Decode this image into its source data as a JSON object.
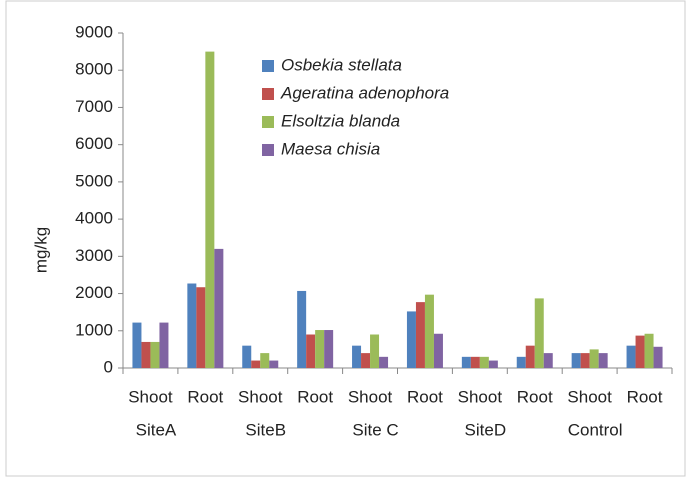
{
  "chart_data": {
    "type": "bar",
    "ylabel": "mg/kg",
    "categories": [
      "Shoot",
      "Root",
      "Shoot",
      "Root",
      "Shoot",
      "Root",
      "Shoot",
      "Root",
      "Shoot",
      "Root"
    ],
    "groups": [
      "SiteA",
      "SiteB",
      "Site C",
      "SiteD",
      "Control"
    ],
    "series": [
      {
        "name": "Osbekia stellata",
        "color": "#4f81bd",
        "values": [
          1220,
          2270,
          600,
          2070,
          600,
          1520,
          300,
          300,
          400,
          600
        ]
      },
      {
        "name": "Ageratina adenophora",
        "color": "#c0504d",
        "values": [
          700,
          2170,
          200,
          900,
          400,
          1770,
          300,
          600,
          400,
          870
        ]
      },
      {
        "name": "Elsoltzia blanda",
        "color": "#9bbb59",
        "values": [
          700,
          8500,
          400,
          1020,
          900,
          1970,
          300,
          1870,
          500,
          920
        ]
      },
      {
        "name": "Maesa chisia",
        "color": "#8064a2",
        "values": [
          1220,
          3200,
          200,
          1020,
          300,
          920,
          200,
          400,
          400,
          570
        ]
      }
    ],
    "ylim": [
      0,
      9000
    ],
    "yticks": [
      0,
      1000,
      2000,
      3000,
      4000,
      5000,
      6000,
      7000,
      8000,
      9000
    ],
    "grid": false
  }
}
